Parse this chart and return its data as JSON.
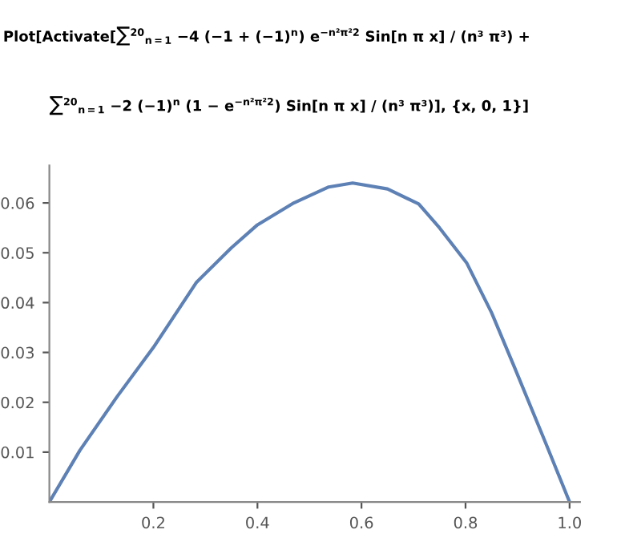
{
  "chart_data": {
    "type": "line",
    "annotations": [
      "Plot[Activate[∑$^{20}$$_{n=1}$ −4 (−1 + (−1)$^{n}$) e$^{−n²π²2}$ Sin[n π x] / (n³ π³) +",
      "∑$^{20}$$_{n=1}$ −2 (−1)$^{n}$ (1 − e$^{−n²π²2}$) Sin[n π x] / (n³ π³)], {x, 0, 1}]"
    ],
    "series": [
      {
        "color": "#5e81b5",
        "x": [
          0,
          0.059,
          0.13,
          0.2,
          0.283,
          0.35,
          0.4,
          0.47,
          0.537,
          0.583,
          0.65,
          0.71,
          0.75,
          0.802,
          0.85,
          0.893,
          0.955,
          1.0
        ],
        "values": [
          0,
          0.0104,
          0.0211,
          0.031,
          0.0441,
          0.051,
          0.0556,
          0.06,
          0.0632,
          0.064,
          0.0628,
          0.0598,
          0.055,
          0.048,
          0.038,
          0.0273,
          0.0116,
          0
        ]
      }
    ],
    "xlim": [
      0,
      1.02
    ],
    "ylim": [
      0,
      0.0675
    ],
    "xticks": [
      0.2,
      0.4,
      0.6,
      0.8,
      {
        "value": 1.0,
        "label": "1.0"
      }
    ],
    "yticks": [
      0.01,
      0.02,
      0.03,
      0.04,
      0.05,
      0.06
    ],
    "grid": false,
    "legend": false,
    "marker": "none",
    "line_style": "solid"
  }
}
